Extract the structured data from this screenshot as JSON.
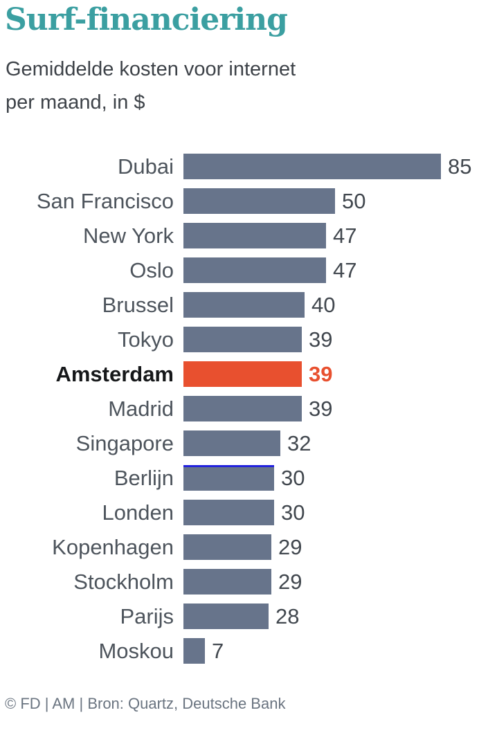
{
  "page": {
    "title": "Surf-financiering",
    "subtitle_line1": "Gemiddelde kosten voor internet",
    "subtitle_line2": "per maand, in $",
    "footer": "© FD | AM | Bron: Quartz, Deutsche Bank"
  },
  "colors": {
    "title": "#3b9fa1",
    "subtitle": "#3d4248",
    "bar": "#67748b",
    "highlight": "#e8502f",
    "accent_line": "#2222dd",
    "label": "#4d545c",
    "highlight_label": "#16181a",
    "value": "#41474e",
    "footer": "#6a7480"
  },
  "chart_data": {
    "type": "bar",
    "orientation": "horizontal",
    "title": "Surf-financiering",
    "subtitle": "Gemiddelde kosten voor internet per maand, in $",
    "xlabel": "",
    "ylabel": "",
    "xlim": [
      0,
      85
    ],
    "grid": false,
    "legend": false,
    "categories": [
      "Dubai",
      "San Francisco",
      "New York",
      "Oslo",
      "Brussel",
      "Tokyo",
      "Amsterdam",
      "Madrid",
      "Singapore",
      "Berlijn",
      "Londen",
      "Kopenhagen",
      "Stockholm",
      "Parijs",
      "Moskou"
    ],
    "values": [
      85,
      50,
      47,
      47,
      40,
      39,
      39,
      39,
      32,
      30,
      30,
      29,
      29,
      28,
      7
    ],
    "value_labels_shown": true,
    "highlight_category": "Amsterdam",
    "accent_line_category": "Berlijn"
  }
}
